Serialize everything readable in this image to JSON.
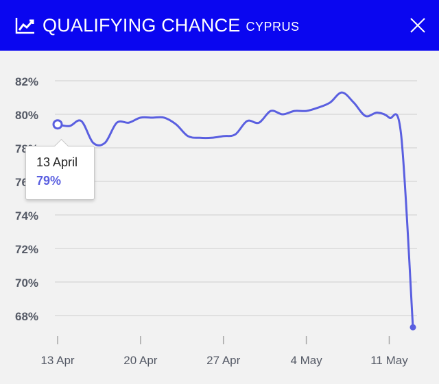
{
  "header": {
    "title": "QUALIFYING CHANCE",
    "subtitle": "CYPRUS",
    "trend_icon": "trending-up-icon",
    "close_icon": "close-icon"
  },
  "colors": {
    "header_bg": "#0a06f0",
    "line": "#5a5fe0",
    "grid": "#cfcfcf",
    "tick_label": "#555a66"
  },
  "tooltip": {
    "date": "13 April",
    "value": "79%"
  },
  "chart_data": {
    "type": "line",
    "ylim": [
      67,
      82.5
    ],
    "y_ticks": [
      82,
      80,
      78,
      76,
      74,
      72,
      70,
      68
    ],
    "y_tick_labels": [
      "82%",
      "80%",
      "78%",
      "76%",
      "74%",
      "72%",
      "70%",
      "68%"
    ],
    "x_ticks": [
      "2024-04-13",
      "2024-04-20",
      "2024-04-27",
      "2024-05-04",
      "2024-05-11"
    ],
    "x_tick_labels": [
      "13 Apr",
      "20 Apr",
      "27 Apr",
      "4 May",
      "11 May"
    ],
    "grid": true,
    "series": [
      {
        "x": [
          "2024-04-13",
          "2024-04-14",
          "2024-04-15",
          "2024-04-16",
          "2024-04-17",
          "2024-04-18",
          "2024-04-19",
          "2024-04-20",
          "2024-04-21",
          "2024-04-22",
          "2024-04-23",
          "2024-04-24",
          "2024-04-25",
          "2024-04-26",
          "2024-04-27",
          "2024-04-28",
          "2024-04-29",
          "2024-04-30",
          "2024-05-01",
          "2024-05-02",
          "2024-05-03",
          "2024-05-04",
          "2024-05-05",
          "2024-05-06",
          "2024-05-07",
          "2024-05-08",
          "2024-05-09",
          "2024-05-10",
          "2024-05-11",
          "2024-05-12",
          "2024-05-13"
        ],
        "values": [
          79.4,
          79.3,
          79.6,
          78.3,
          78.3,
          79.5,
          79.5,
          79.8,
          79.8,
          79.8,
          79.4,
          78.7,
          78.6,
          78.6,
          78.7,
          78.8,
          79.6,
          79.5,
          80.2,
          80.0,
          80.2,
          80.2,
          80.4,
          80.7,
          81.3,
          80.7,
          79.9,
          80.1,
          79.8,
          78.8,
          67.3
        ]
      }
    ]
  }
}
